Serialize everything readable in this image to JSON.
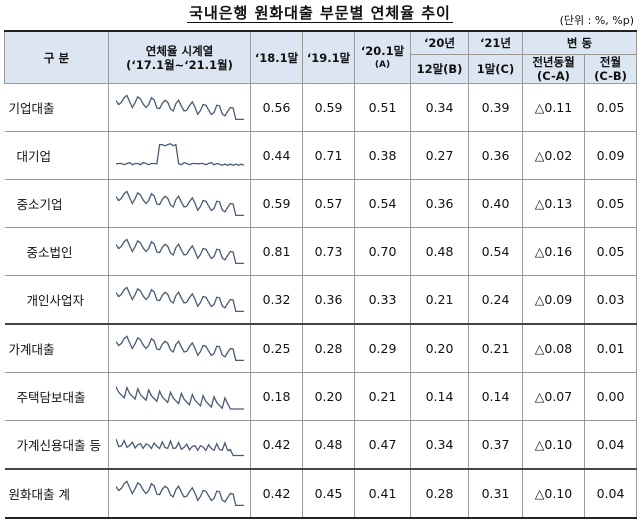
{
  "title": "국내은행 원화대출 부문별 연체율 추이",
  "unit": "(단위 : %, %p)",
  "header": {
    "category": "구 분",
    "series_title_line1": "연체율 시계열",
    "series_title_line2": "(‘17.1월~‘21.1월)",
    "col_18": "‘18.1말",
    "col_19": "‘19.1말",
    "col_20_line1": "‘20.1말",
    "col_20_line2": "(A)",
    "col_20dec_line1": "‘20년",
    "col_20dec_line2": "12말(B)",
    "col_21_line1": "‘21년",
    "col_21_line2": "1말(C)",
    "change": "변 동",
    "yoy_line1": "전년동월",
    "yoy_line2": "(C-A)",
    "mom_line1": "전월",
    "mom_line2": "(C-B)"
  },
  "rows": [
    {
      "label": "기업대출",
      "values": [
        "0.56",
        "0.59",
        "0.51",
        "0.34",
        "0.39",
        "△0.11",
        "0.05"
      ]
    },
    {
      "label": "대기업",
      "values": [
        "0.44",
        "0.71",
        "0.38",
        "0.27",
        "0.36",
        "△0.02",
        "0.09"
      ]
    },
    {
      "label": "중소기업",
      "values": [
        "0.59",
        "0.57",
        "0.54",
        "0.36",
        "0.40",
        "△0.13",
        "0.05"
      ]
    },
    {
      "label": "중소법인",
      "values": [
        "0.81",
        "0.73",
        "0.70",
        "0.48",
        "0.54",
        "△0.16",
        "0.05"
      ]
    },
    {
      "label": "개인사업자",
      "values": [
        "0.32",
        "0.36",
        "0.33",
        "0.21",
        "0.24",
        "△0.09",
        "0.03"
      ]
    },
    {
      "label": "가계대출",
      "values": [
        "0.25",
        "0.28",
        "0.29",
        "0.20",
        "0.21",
        "△0.08",
        "0.01"
      ]
    },
    {
      "label": "주택담보대출",
      "values": [
        "0.18",
        "0.20",
        "0.21",
        "0.14",
        "0.14",
        "△0.07",
        "0.00"
      ]
    },
    {
      "label": "가계신용대출 등",
      "values": [
        "0.42",
        "0.48",
        "0.47",
        "0.34",
        "0.37",
        "△0.10",
        "0.04"
      ]
    },
    {
      "label": "원화대출 계",
      "values": [
        "0.42",
        "0.45",
        "0.41",
        "0.28",
        "0.31",
        "△0.10",
        "0.04"
      ]
    }
  ],
  "sparkline_color": "#4a5a75"
}
